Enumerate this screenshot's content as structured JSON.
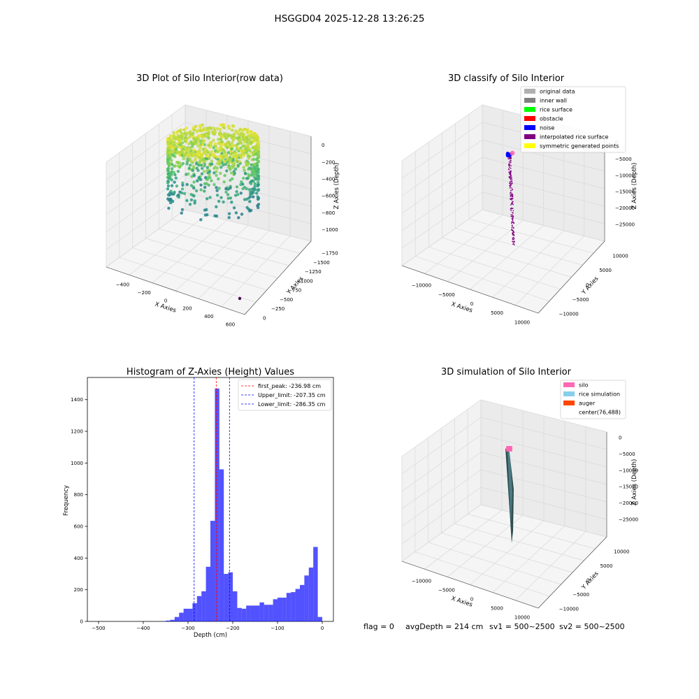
{
  "figure": {
    "suptitle": "HSGGD04 2025-12-28 13:26:25",
    "status_line": {
      "flag": "flag = 0",
      "avg_depth": "avgDepth = 214 cm",
      "sv1": "sv1 = 500~2500",
      "sv2": "sv2 = 500~2500"
    }
  },
  "chart_data": [
    {
      "id": "raw",
      "type": "scatter",
      "projection": "3d",
      "title": "3D Plot of Silo Interior(row data)",
      "xlabel": "X Axies",
      "ylabel": "Y Axies",
      "zlabel": "Z Axies (Depth)",
      "xticks": [
        "−400",
        "−200",
        "0",
        "200",
        "400",
        "600"
      ],
      "yticks": [
        "0",
        "−250",
        "−500",
        "−750",
        "−1000",
        "−1250",
        "−1500",
        "−1750"
      ],
      "zticks": [
        "0",
        "−200",
        "−400",
        "−600",
        "−800",
        "−1000"
      ],
      "xlim": [
        -500,
        700
      ],
      "ylim": [
        -1850,
        100
      ],
      "zlim": [
        -1100,
        50
      ],
      "colormap": "viridis",
      "points_description_series": [
        {
          "name": "",
          "cluster": "cylindrical point cloud",
          "x_range": [
            -250,
            300
          ],
          "y_range": [
            -250,
            250
          ],
          "z_range": [
            -600,
            0
          ]
        },
        {
          "name": "",
          "cluster": "outlier",
          "x": 650,
          "y": -1700,
          "z": -1000
        }
      ]
    },
    {
      "id": "classify",
      "type": "scatter",
      "projection": "3d",
      "title": "3D classify of Silo Interior",
      "xlabel": "X Axies",
      "ylabel": "Y Axies",
      "zlabel": "Z Axies (Depth)",
      "xticks": [
        "−10000",
        "−5000",
        "0",
        "5000",
        "10000"
      ],
      "yticks": [
        "−10000",
        "−5000",
        "0",
        "5000",
        "10000"
      ],
      "zticks": [
        "0",
        "−5000",
        "−10000",
        "−15000",
        "−20000",
        "−25000"
      ],
      "xlim": [
        -13000,
        13000
      ],
      "ylim": [
        -13000,
        13000
      ],
      "zlim": [
        -28000,
        500
      ],
      "legend_position": "upper-right",
      "legend": [
        {
          "label": "original data",
          "color": "#b0b0b0"
        },
        {
          "label": "inner wall",
          "color": "#808080"
        },
        {
          "label": "rice surface",
          "color": "#00ff00"
        },
        {
          "label": "obstacle",
          "color": "#ff0000"
        },
        {
          "label": "noise",
          "color": "#0000ff"
        },
        {
          "label": "interpolated rice surface",
          "color": "#800080"
        },
        {
          "label": "symmetric generated points",
          "color": "#ffff00"
        }
      ]
    },
    {
      "id": "hist",
      "type": "bar",
      "title": "Histogram of Z-Axies (Height) Values",
      "xlabel": "Depth (cm)",
      "ylabel": "Frequency",
      "xlim": [
        -525,
        25
      ],
      "ylim": [
        0,
        1540
      ],
      "xticks": [
        -500,
        -400,
        -300,
        -200,
        -100,
        0
      ],
      "yticks": [
        0,
        200,
        400,
        600,
        800,
        1000,
        1200,
        1400
      ],
      "bar_color": "#0000ff",
      "bin_width": 10,
      "bin_starts": [
        -360,
        -350,
        -340,
        -330,
        -320,
        -310,
        -300,
        -290,
        -280,
        -270,
        -260,
        -250,
        -240,
        -230,
        -220,
        -210,
        -200,
        -190,
        -180,
        -170,
        -160,
        -150,
        -140,
        -130,
        -120,
        -110,
        -100,
        -90,
        -80,
        -70,
        -60,
        -50,
        -40,
        -30,
        -20,
        -10,
        0
      ],
      "values": [
        2,
        5,
        10,
        28,
        55,
        80,
        80,
        115,
        160,
        190,
        345,
        635,
        1470,
        960,
        300,
        310,
        190,
        85,
        80,
        100,
        100,
        100,
        120,
        105,
        105,
        140,
        150,
        150,
        180,
        185,
        205,
        230,
        290,
        340,
        470,
        28,
        0
      ],
      "lines": [
        {
          "label": "first_peak: -236.98 cm",
          "x": -236.98,
          "color": "#ff0000"
        },
        {
          "label": "Upper_limit: -207.35 cm",
          "x": -207.35,
          "color": "#0000ff"
        },
        {
          "label": "Lower_limit: -286.35 cm",
          "x": -286.35,
          "color": "#0000ff"
        }
      ],
      "legend_position": "upper-right"
    },
    {
      "id": "sim",
      "type": "scatter",
      "projection": "3d",
      "title": "3D simulation of Silo Interior",
      "xlabel": "X Axies",
      "ylabel": "Y Axies",
      "zlabel": "Z Axies (Depth)",
      "xticks": [
        "−10000",
        "−5000",
        "0",
        "5000",
        "10000"
      ],
      "yticks": [
        "−10000",
        "−5000",
        "0",
        "5000",
        "10000"
      ],
      "zticks": [
        "0",
        "−5000",
        "−10000",
        "−15000",
        "−20000",
        "−25000"
      ],
      "xlim": [
        -13000,
        13000
      ],
      "ylim": [
        -13000,
        13000
      ],
      "zlim": [
        -28000,
        500
      ],
      "legend_position": "upper-right",
      "legend": [
        {
          "label": "silo",
          "color": "#ff69b4"
        },
        {
          "label": "rice simulation",
          "color": "#87ceeb"
        },
        {
          "label": "auger",
          "color": "#ff4500"
        },
        {
          "label": "center(76,488)",
          "color": "#ffffff"
        }
      ]
    }
  ]
}
